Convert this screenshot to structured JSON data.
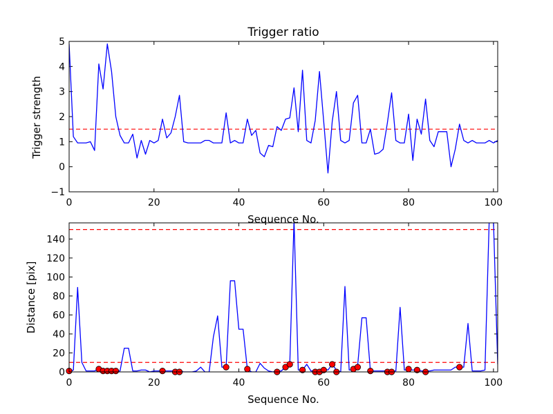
{
  "chart_data": [
    {
      "type": "line",
      "title": "Trigger ratio",
      "xlabel": "Sequence No.",
      "ylabel": "Trigger strength",
      "xlim": [
        0,
        101
      ],
      "ylim": [
        -1,
        5
      ],
      "xticks": [
        "0",
        "20",
        "40",
        "60",
        "80",
        "100"
      ],
      "yticks": [
        "−1",
        "0",
        "1",
        "2",
        "3",
        "4",
        "5"
      ],
      "grid": false,
      "series": [
        {
          "color": "#0000ff",
          "x": [
            0,
            1,
            2,
            3,
            4,
            5,
            6,
            7,
            8,
            9,
            10,
            11,
            12,
            13,
            14,
            15,
            16,
            17,
            18,
            19,
            20,
            21,
            22,
            23,
            24,
            25,
            26,
            27,
            28,
            29,
            30,
            31,
            32,
            33,
            34,
            35,
            36,
            37,
            38,
            39,
            40,
            41,
            42,
            43,
            44,
            45,
            46,
            47,
            48,
            49,
            50,
            51,
            52,
            53,
            54,
            55,
            56,
            57,
            58,
            59,
            60,
            61,
            62,
            63,
            64,
            65,
            66,
            67,
            68,
            69,
            70,
            71,
            72,
            73,
            74,
            75,
            76,
            77,
            78,
            79,
            80,
            81,
            82,
            83,
            84,
            85,
            86,
            87,
            88,
            89,
            90,
            91,
            92,
            93,
            94,
            95,
            96,
            97,
            98,
            99,
            100,
            101
          ],
          "y": [
            4.9,
            1.2,
            0.95,
            0.95,
            0.95,
            1.0,
            0.65,
            4.1,
            3.1,
            4.9,
            3.8,
            2.0,
            1.25,
            0.95,
            0.95,
            1.3,
            0.35,
            1.05,
            0.5,
            1.05,
            0.95,
            1.05,
            1.9,
            1.15,
            1.35,
            2.0,
            2.85,
            1.0,
            0.95,
            0.95,
            0.95,
            0.95,
            1.05,
            1.05,
            0.95,
            0.95,
            0.95,
            2.15,
            0.95,
            1.05,
            0.95,
            0.95,
            1.9,
            1.25,
            1.45,
            0.55,
            0.4,
            0.85,
            0.8,
            1.6,
            1.45,
            1.9,
            1.95,
            3.15,
            1.4,
            3.85,
            1.05,
            0.95,
            1.85,
            3.8,
            1.8,
            -0.25,
            1.8,
            3.0,
            1.05,
            0.95,
            1.05,
            2.55,
            2.85,
            0.95,
            0.95,
            1.5,
            0.5,
            0.55,
            0.7,
            1.75,
            2.95,
            1.05,
            0.95,
            0.95,
            2.1,
            0.25,
            1.9,
            1.3,
            2.7,
            1.05,
            0.8,
            1.4,
            1.4,
            1.4,
            0.0,
            0.7,
            1.7,
            1.05,
            0.95,
            1.05,
            0.95,
            0.95,
            0.95,
            1.05,
            0.95,
            1.05
          ]
        }
      ],
      "reference_lines": [
        {
          "y": 1.5,
          "color": "#ff0000",
          "style": "dashed"
        }
      ]
    },
    {
      "type": "line",
      "title": "",
      "xlabel": "Sequence No.",
      "ylabel": "Distance [pix]",
      "xlim": [
        0,
        101
      ],
      "ylim": [
        0,
        157
      ],
      "xticks": [
        "0",
        "20",
        "40",
        "60",
        "80",
        "100"
      ],
      "yticks": [
        "0",
        "20",
        "40",
        "60",
        "80",
        "100",
        "120",
        "140"
      ],
      "grid": false,
      "series": [
        {
          "color": "#0000ff",
          "x": [
            0,
            1,
            2,
            3,
            4,
            5,
            6,
            7,
            8,
            9,
            10,
            11,
            12,
            13,
            14,
            15,
            16,
            17,
            18,
            19,
            20,
            21,
            22,
            23,
            24,
            25,
            26,
            27,
            28,
            29,
            30,
            31,
            32,
            33,
            34,
            35,
            36,
            37,
            38,
            39,
            40,
            41,
            42,
            43,
            44,
            45,
            46,
            47,
            48,
            49,
            50,
            51,
            52,
            53,
            54,
            55,
            56,
            57,
            58,
            59,
            60,
            61,
            62,
            63,
            64,
            65,
            66,
            67,
            68,
            69,
            70,
            71,
            72,
            73,
            74,
            75,
            76,
            77,
            78,
            79,
            80,
            81,
            82,
            83,
            84,
            85,
            86,
            87,
            88,
            89,
            90,
            91,
            92,
            93,
            94,
            95,
            96,
            97,
            98,
            99,
            100,
            101
          ],
          "y": [
            0,
            2,
            89,
            10,
            1,
            1,
            1,
            3,
            2,
            1,
            1,
            1,
            1,
            25,
            25,
            1,
            1,
            2,
            2,
            0,
            1,
            1,
            1,
            1,
            1,
            1,
            1,
            0,
            0,
            0,
            1,
            5,
            0,
            0,
            37,
            59,
            5,
            5,
            96,
            96,
            45,
            45,
            3,
            0,
            0,
            9,
            4,
            1,
            0,
            1,
            1,
            5,
            8,
            160,
            2,
            2,
            8,
            1,
            1,
            2,
            3,
            2,
            8,
            2,
            0,
            90,
            2,
            2,
            7,
            57,
            57,
            1,
            1,
            1,
            1,
            1,
            1,
            1,
            68,
            2,
            2,
            2,
            2,
            1,
            1,
            1,
            2,
            2,
            2,
            2,
            2,
            5,
            5,
            5,
            51,
            1,
            1,
            1,
            2,
            160,
            160,
            8
          ]
        }
      ],
      "markers": {
        "color": "#ff0000",
        "x": [
          0,
          7,
          8,
          9,
          10,
          11,
          22,
          25,
          26,
          37,
          42,
          49,
          51,
          52,
          55,
          58,
          59,
          60,
          62,
          63,
          67,
          68,
          71,
          75,
          76,
          80,
          82,
          84,
          92
        ],
        "y": [
          1,
          3,
          1,
          1,
          1,
          1,
          1,
          0,
          0,
          5,
          3,
          0,
          5,
          8,
          2,
          0,
          0,
          2,
          8,
          0,
          3,
          5,
          1,
          0,
          0,
          3,
          2,
          0,
          5
        ]
      },
      "reference_lines": [
        {
          "y": 10,
          "color": "#ff0000",
          "style": "dashed"
        },
        {
          "y": 150,
          "color": "#ff0000",
          "style": "dashed"
        }
      ]
    }
  ]
}
